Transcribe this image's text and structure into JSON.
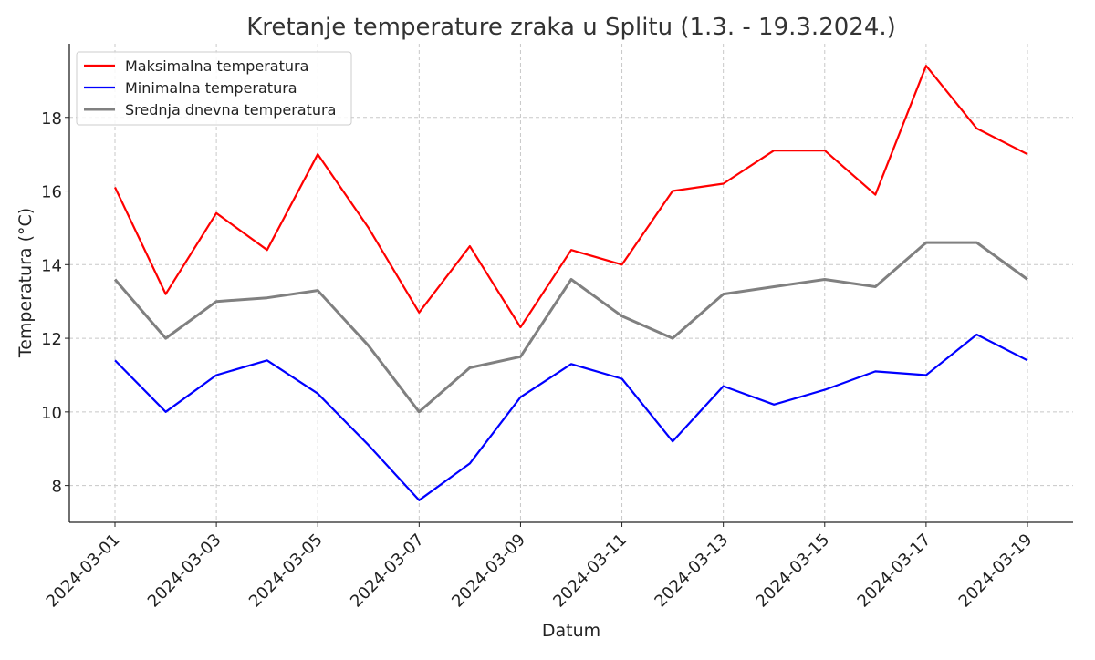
{
  "chart_data": {
    "type": "line",
    "title": "Kretanje temperature zraka u Splitu (1.3. - 19.3.2024.)",
    "xlabel": "Datum",
    "ylabel": "Temperatura (°C)",
    "x": [
      "2024-03-01",
      "2024-03-02",
      "2024-03-03",
      "2024-03-04",
      "2024-03-05",
      "2024-03-06",
      "2024-03-07",
      "2024-03-08",
      "2024-03-09",
      "2024-03-10",
      "2024-03-11",
      "2024-03-12",
      "2024-03-13",
      "2024-03-14",
      "2024-03-15",
      "2024-03-16",
      "2024-03-17",
      "2024-03-18",
      "2024-03-19"
    ],
    "x_tick_labels": [
      "2024-03-01",
      "2024-03-03",
      "2024-03-05",
      "2024-03-07",
      "2024-03-09",
      "2024-03-11",
      "2024-03-13",
      "2024-03-15",
      "2024-03-17",
      "2024-03-19"
    ],
    "y_ticks": [
      8,
      10,
      12,
      14,
      16,
      18
    ],
    "ylim": [
      7.0,
      20.0
    ],
    "grid": true,
    "legend_position": "top-left",
    "series": [
      {
        "name": "Maksimalna temperatura",
        "color": "#ff0000",
        "values": [
          16.1,
          13.2,
          15.4,
          14.4,
          17.0,
          15.0,
          12.7,
          14.5,
          12.3,
          14.4,
          14.0,
          16.0,
          16.2,
          17.1,
          17.1,
          15.9,
          19.4,
          17.7,
          17.0
        ]
      },
      {
        "name": "Minimalna temperatura",
        "color": "#0000ff",
        "values": [
          11.4,
          10.0,
          11.0,
          11.4,
          10.5,
          9.1,
          7.6,
          8.6,
          10.4,
          11.3,
          10.9,
          9.2,
          10.7,
          10.2,
          10.6,
          11.1,
          11.0,
          12.1,
          11.4
        ]
      },
      {
        "name": "Srednja dnevna temperatura",
        "color": "#808080",
        "values": [
          13.6,
          12.0,
          13.0,
          13.1,
          13.3,
          11.8,
          10.0,
          11.2,
          11.5,
          13.6,
          12.6,
          12.0,
          13.2,
          13.4,
          13.6,
          13.4,
          14.6,
          14.6,
          13.6
        ]
      }
    ]
  }
}
